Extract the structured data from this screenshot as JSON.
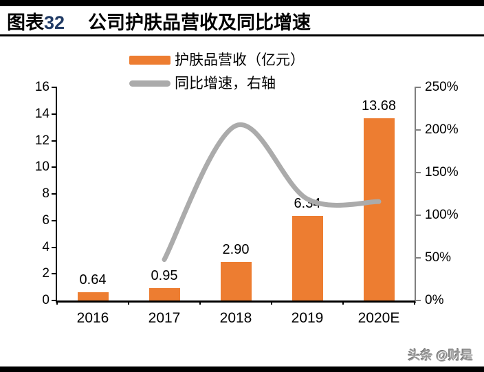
{
  "header": {
    "title_prefix": "图表",
    "title_number": "32",
    "title": "公司护肤品营收及同比增速",
    "number_color": "#203a64"
  },
  "legend": [
    {
      "label": "护肤品营收（亿元）",
      "color": "#ED7D31",
      "type": "bar"
    },
    {
      "label": "同比增速，右轴",
      "color": "#ABABAB",
      "type": "line"
    }
  ],
  "chart_data": {
    "type": "bar+line",
    "categories": [
      "2016",
      "2017",
      "2018",
      "2019",
      "2020E"
    ],
    "series": [
      {
        "name": "护肤品营收（亿元）",
        "type": "bar",
        "axis": "left",
        "color": "#ED7D31",
        "values": [
          0.64,
          0.95,
          2.9,
          6.34,
          13.68
        ],
        "labels": [
          "0.64",
          "0.95",
          "2.90",
          "6.34",
          "13.68"
        ]
      },
      {
        "name": "同比增速，右轴",
        "type": "line",
        "axis": "right",
        "color": "#ABABAB",
        "values": [
          null,
          48,
          205,
          119,
          116
        ]
      }
    ],
    "left_axis": {
      "min": 0,
      "max": 16,
      "step": 2,
      "ticks": [
        "16",
        "14",
        "12",
        "10",
        "8",
        "6",
        "4",
        "2",
        "0"
      ]
    },
    "right_axis": {
      "min": 0,
      "max": 250,
      "step": 50,
      "unit": "%",
      "ticks": [
        "250%",
        "200%",
        "150%",
        "100%",
        "50%",
        "0%"
      ]
    },
    "grid": false,
    "legend_position": "top",
    "line_smoothed": true
  },
  "watermark": "头条 @财是"
}
